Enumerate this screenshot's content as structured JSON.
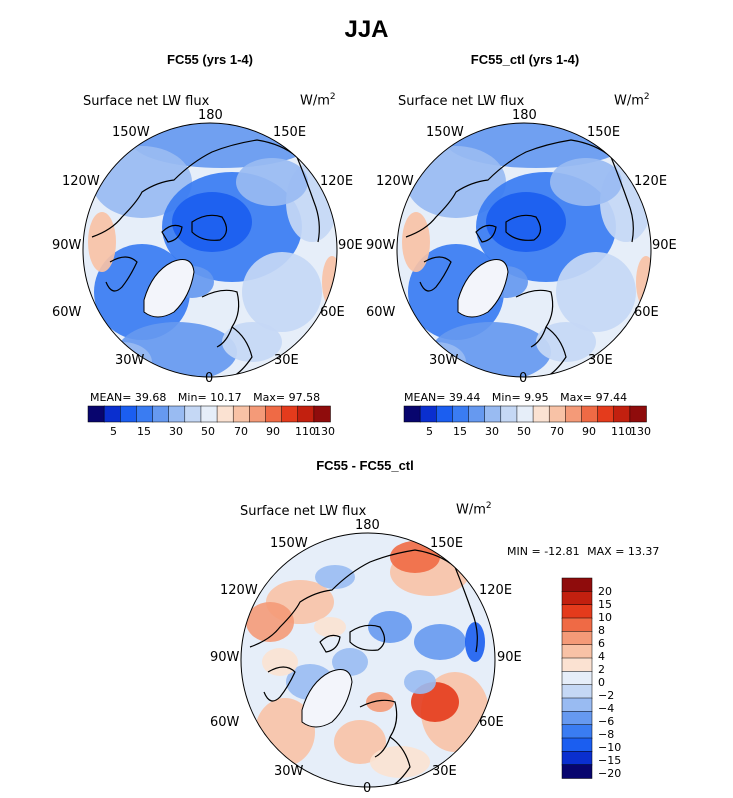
{
  "title": "JJA",
  "units": "W/m",
  "units_exp": "2",
  "variable": "Surface net LW flux",
  "longitudes": [
    "180",
    "150E",
    "120E",
    "90E",
    "60E",
    "30E",
    "0",
    "30W",
    "60W",
    "90W",
    "120W",
    "150W"
  ],
  "colors": {
    "seq": [
      "#08056e",
      "#0a2fcf",
      "#1b5ef0",
      "#3a7cf2",
      "#6699f0",
      "#99bbf2",
      "#c5d8f5",
      "#e6eef9",
      "#fbe2d2",
      "#f8c2a6",
      "#f49a78",
      "#ef6a45",
      "#e43b1c",
      "#c2200f",
      "#8f0c0c"
    ],
    "div": [
      "#08056e",
      "#0a2fcf",
      "#1b5ef0",
      "#3a7cf2",
      "#6699f0",
      "#99bbf2",
      "#c5d8f5",
      "#e6eef9",
      "#fbe2d2",
      "#f8c2a6",
      "#f49a78",
      "#ef6a45",
      "#e43b1c",
      "#c2200f",
      "#8f0c0c"
    ]
  },
  "chart_data": [
    {
      "type": "heatmap",
      "title": "FC55 (yrs 1-4)",
      "stats": {
        "mean_label": "MEAN=",
        "mean": "39.68",
        "min_label": "Min=",
        "min": "10.17",
        "max_label": "Max=",
        "max": "97.58"
      },
      "colorbar": {
        "tick_labels": [
          "5",
          "15",
          "30",
          "50",
          "70",
          "90",
          "110",
          "130"
        ]
      }
    },
    {
      "type": "heatmap",
      "title": "FC55_ctl (yrs 1-4)",
      "stats": {
        "mean_label": "MEAN=",
        "mean": "39.44",
        "min_label": "Min=",
        "min": "9.95",
        "max_label": "Max=",
        "max": "97.44"
      },
      "colorbar": {
        "tick_labels": [
          "5",
          "15",
          "30",
          "50",
          "70",
          "90",
          "110",
          "130"
        ]
      }
    },
    {
      "type": "heatmap",
      "title": "FC55 - FC55_ctl",
      "stats": {
        "min_label": "MIN =",
        "min": "-12.81",
        "max_label": "MAX =",
        "max": "13.37"
      },
      "colorbar": {
        "tick_labels": [
          "20",
          "15",
          "10",
          "8",
          "6",
          "4",
          "2",
          "0",
          "−2",
          "−4",
          "−6",
          "−8",
          "−10",
          "−15",
          "−20"
        ]
      }
    }
  ]
}
